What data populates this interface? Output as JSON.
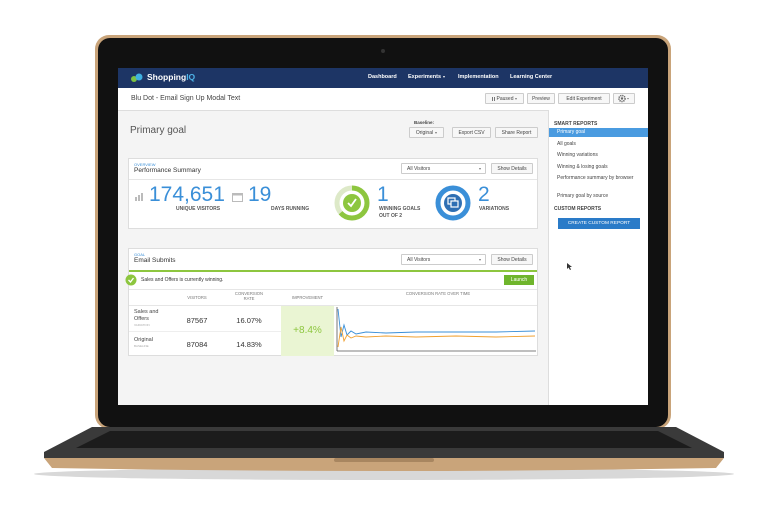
{
  "nav": {
    "brand_prefix": "Shopping",
    "brand_suffix": "IQ",
    "links": [
      "Dashboard",
      "Experiments",
      "Implementation",
      "Learning Center"
    ]
  },
  "header": {
    "title": "Blu Dot - Email Sign Up Modal Text",
    "buttons": [
      "Paused",
      "Preview",
      "Edit Experiment"
    ]
  },
  "page": {
    "title": "Primary goal",
    "baseline_label": "Baseline:",
    "baseline_value": "Original",
    "buttons": [
      "Export CSV",
      "Share Report"
    ]
  },
  "overview": {
    "eyebrow": "OVERVIEW",
    "title": "Performance Summary",
    "filter": "All Visitors",
    "details_button": "Show Details",
    "stats": [
      {
        "value": "174,651",
        "label": "UNIQUE VISITORS"
      },
      {
        "value": "19",
        "label": "DAYS RUNNING"
      },
      {
        "value": "1",
        "label": "WINNING GOALS",
        "sublabel": "OUT OF 2"
      },
      {
        "value": "2",
        "label": "VARIATIONS"
      }
    ]
  },
  "goal": {
    "eyebrow": "GOAL",
    "title": "Email Submits",
    "filter": "All Visitors",
    "details_button": "Show Details",
    "banner": "Sales and Offers is currently winning.",
    "launch": "Launch",
    "columns": [
      "VISITORS",
      "CONVERSION RATE",
      "IMPROVEMENT",
      "CONVERSION RATE OVER TIME"
    ],
    "rows": [
      {
        "name": "Sales and Offers",
        "tag": "VARIATION",
        "visitors": "87567",
        "rate": "16.07%"
      },
      {
        "name": "Original",
        "tag": "BASELINE",
        "visitors": "87084",
        "rate": "14.83%"
      }
    ],
    "improvement": "+8.4%"
  },
  "sidebar": {
    "smart_title": "SMART REPORTS",
    "smart_items": [
      "Primary goal",
      "All goals",
      "Winning variations",
      "Winning & losing goals",
      "Performance summary by browser",
      "Primary goal by source"
    ],
    "custom_title": "CUSTOM REPORTS",
    "custom_button": "CREATE CUSTOM REPORT"
  }
}
